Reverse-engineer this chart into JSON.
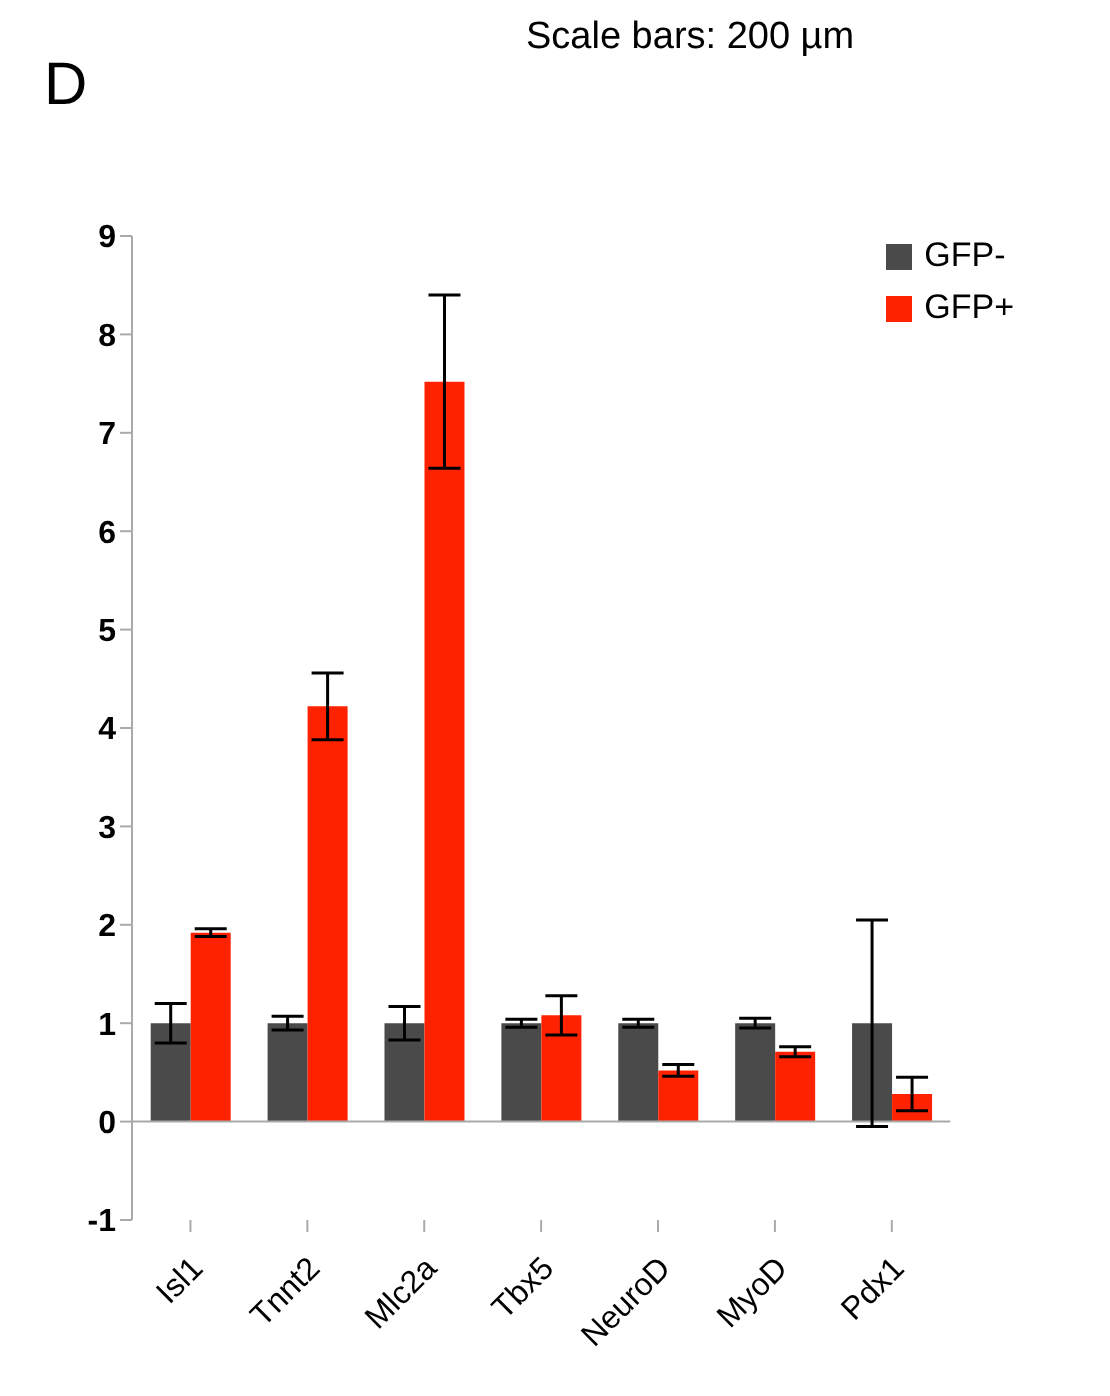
{
  "chart_data": {
    "type": "bar",
    "categories": [
      "Isl1",
      "Tnnt2",
      "Mlc2a",
      "Tbx5",
      "NeuroD",
      "MyoD",
      "Pdx1"
    ],
    "series": [
      {
        "name": "GFP-",
        "color": "#4a4a4a",
        "values": [
          1.0,
          1.0,
          1.0,
          1.0,
          1.0,
          1.0,
          1.0
        ],
        "errors": [
          0.2,
          0.07,
          0.17,
          0.04,
          0.04,
          0.05,
          1.05
        ]
      },
      {
        "name": "GFP+",
        "color": "#ff2200",
        "values": [
          1.92,
          4.22,
          7.52,
          1.08,
          0.52,
          0.71,
          0.28
        ],
        "errors": [
          0.04,
          0.34,
          0.88,
          0.2,
          0.06,
          0.05,
          0.17
        ]
      }
    ],
    "ylim": [
      -1,
      9
    ],
    "yticks": [
      -1,
      0,
      1,
      2,
      3,
      4,
      5,
      6,
      7,
      8,
      9
    ],
    "legend": "top right",
    "annotations": [
      "D",
      "Scale bars: 200 µm"
    ]
  }
}
